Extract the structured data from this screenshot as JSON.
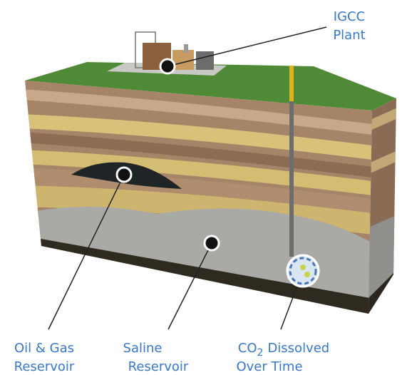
{
  "labels": {
    "igcc_plant": [
      "IGCC",
      "Plant"
    ],
    "oil_gas_reservoir": [
      "Oil & Gas",
      "Reservoir"
    ],
    "saline_reservoir": [
      "Saline",
      "Reservoir"
    ],
    "co2": {
      "formula": "CO",
      "subscript": "2",
      "line1": "Dissolved",
      "line2": "Over Time"
    }
  }
}
